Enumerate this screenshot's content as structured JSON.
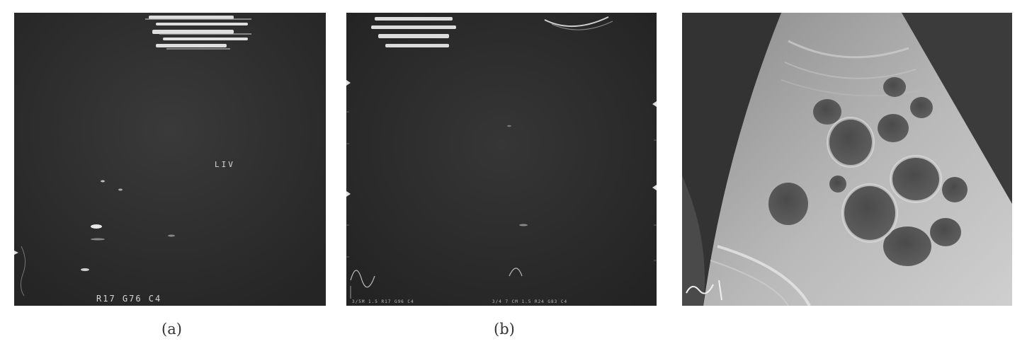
{
  "panels": [
    {
      "id": "a",
      "caption": "(a)",
      "labels": {
        "organ": "LIV",
        "settings": "R17 G76 C4"
      }
    },
    {
      "id": "b",
      "caption": "(b)",
      "labels": {
        "settings_left": "3/5M 1.5 R17 G96 C4",
        "settings_right": "3/4 7 CM 1.5 R24 G83 C4"
      }
    },
    {
      "id": "c",
      "caption": ""
    }
  ]
}
